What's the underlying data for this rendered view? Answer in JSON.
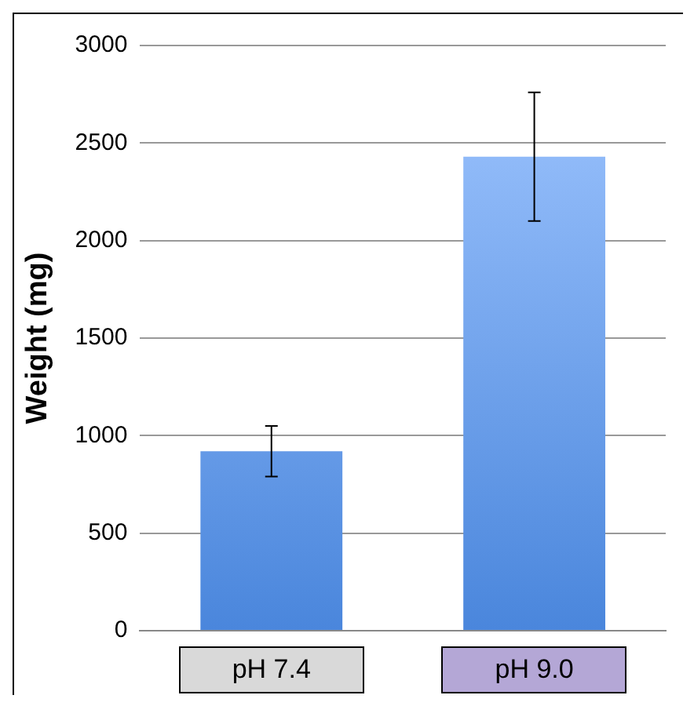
{
  "chart_data": {
    "type": "bar",
    "ylabel": "Weight (mg)",
    "categories": [
      "pH 7.4",
      "pH 9.0"
    ],
    "values": [
      920,
      2430
    ],
    "errors": [
      130,
      330
    ],
    "color": "#4a86dc",
    "ylim": [
      0,
      3000
    ],
    "yticks": [
      0,
      500,
      1000,
      1500,
      2000,
      2500,
      3000
    ],
    "grid": "y"
  }
}
